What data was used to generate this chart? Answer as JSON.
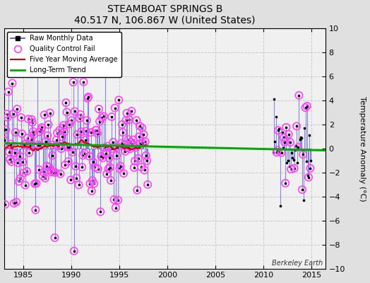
{
  "title": "STEAMBOAT SPRINGS B",
  "subtitle": "40.517 N, 106.867 W (United States)",
  "ylabel": "Temperature Anomaly (°C)",
  "attribution": "Berkeley Earth",
  "xlim": [
    1983.0,
    2016.5
  ],
  "ylim": [
    -10,
    10
  ],
  "xticks": [
    1985,
    1990,
    1995,
    2000,
    2005,
    2010,
    2015
  ],
  "yticks": [
    -10,
    -8,
    -6,
    -4,
    -2,
    0,
    2,
    4,
    6,
    8,
    10
  ],
  "fig_bg_color": "#e0e0e0",
  "plot_bg_color": "#f0f0f0",
  "grid_color": "#c8c8c8",
  "raw_line_color": "#4444cc",
  "raw_dot_color": "#000000",
  "qc_color": "#ff44ff",
  "moving_avg_color": "#cc0000",
  "trend_color": "#00aa00",
  "trend_x": [
    1983.0,
    2016.5
  ],
  "trend_y": [
    0.45,
    -0.15
  ],
  "seed1": 17,
  "seed2": 99,
  "period1_start": 1983,
  "period1_end": 1997,
  "period2_start": 2011,
  "period2_end": 2014
}
